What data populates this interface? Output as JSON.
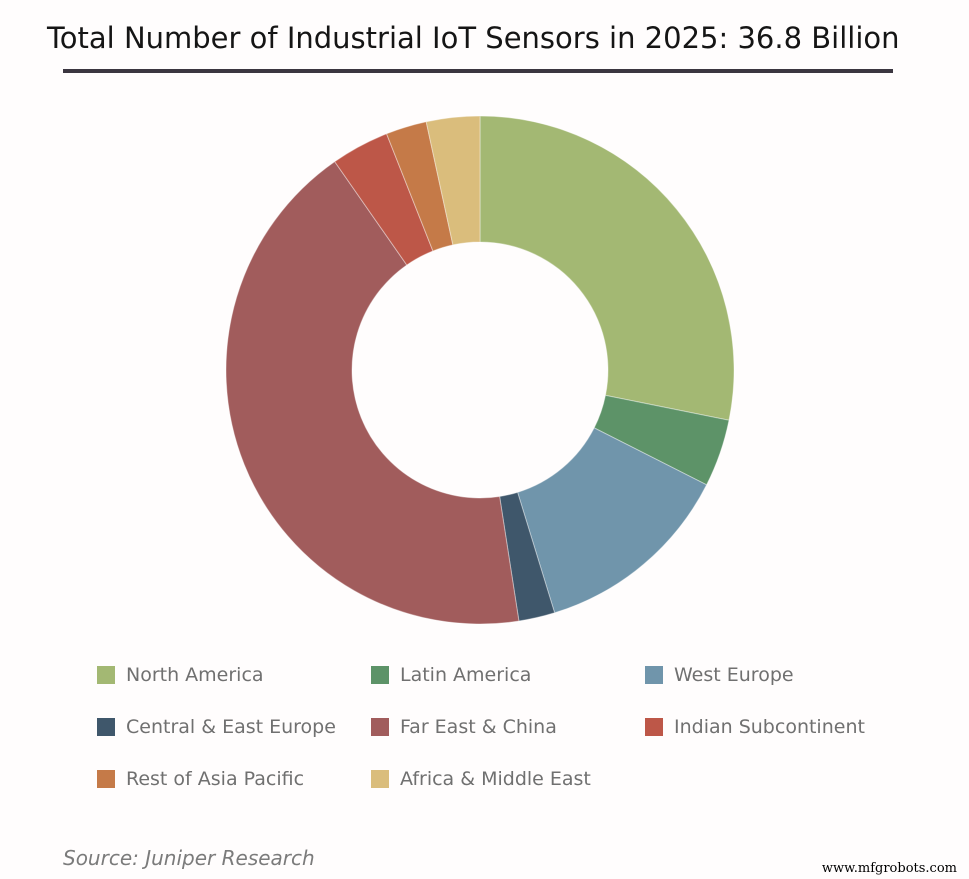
{
  "title": "Total Number of Industrial IoT Sensors in 2025: 36.8 Billion",
  "source_note": "Source: Juniper Research",
  "watermark": "www.mfgrobots.com",
  "colors": {
    "background": "#fffdfd",
    "title_text": "#151515",
    "title_underline": "#3b3640",
    "legend_text": "#707070",
    "source_text": "#7b7b7b",
    "watermark_text": "#000000"
  },
  "chart_data": {
    "type": "pie",
    "subtype": "donut",
    "title": "Total Number of Industrial IoT Sensors in 2025: 36.8 Billion",
    "total_billion": 36.8,
    "unit": "billion sensors",
    "legend_position": "bottom",
    "donut_hole_ratio": 0.5,
    "start_angle_deg": 0,
    "direction": "clockwise",
    "slices": [
      {
        "label": "North America",
        "share_pct": 28.2,
        "value_billion_est": 10.4,
        "angle_deg": 101.5,
        "color": "#a3b873"
      },
      {
        "label": "Latin America",
        "share_pct": 4.3,
        "value_billion_est": 1.6,
        "angle_deg": 15.5,
        "color": "#5d9368"
      },
      {
        "label": "West Europe",
        "share_pct": 12.8,
        "value_billion_est": 4.7,
        "angle_deg": 46.0,
        "color": "#7095ab"
      },
      {
        "label": "Central & East Europe",
        "share_pct": 2.3,
        "value_billion_est": 0.85,
        "angle_deg": 8.3,
        "color": "#3f576b"
      },
      {
        "label": "Far East & China",
        "share_pct": 42.8,
        "value_billion_est": 15.8,
        "angle_deg": 154.2,
        "color": "#a15c5c"
      },
      {
        "label": "Indian Subcontinent",
        "share_pct": 3.7,
        "value_billion_est": 1.35,
        "angle_deg": 13.2,
        "color": "#bd5748"
      },
      {
        "label": "Rest of Asia Pacific",
        "share_pct": 2.6,
        "value_billion_est": 0.94,
        "angle_deg": 9.2,
        "color": "#c57a48"
      },
      {
        "label": "Africa & Middle East",
        "share_pct": 3.4,
        "value_billion_est": 1.24,
        "angle_deg": 12.1,
        "color": "#dabd7c"
      }
    ]
  }
}
